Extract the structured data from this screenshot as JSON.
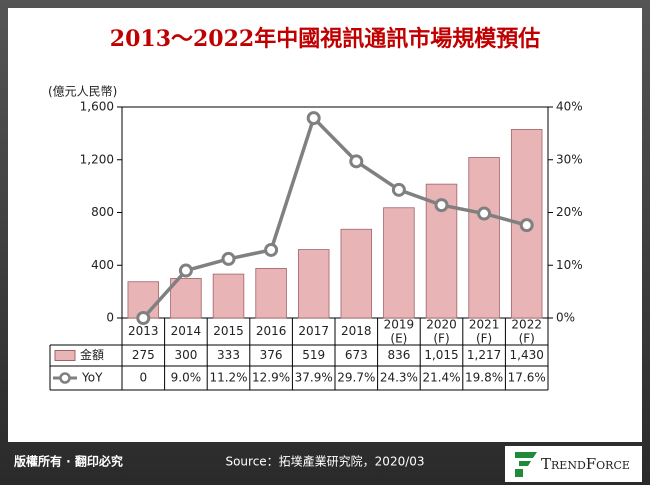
{
  "chart_data": {
    "type": "bar",
    "title": "2013～2022年中國視訊通訊市場規模預估",
    "y_label": "(億元人民幣)",
    "categories": [
      "2013",
      "2014",
      "2015",
      "2016",
      "2017",
      "2018",
      "2019\n(E)",
      "2020\n(F)",
      "2021\n(F)",
      "2022\n(F)"
    ],
    "series": [
      {
        "name": "金額",
        "type": "bar",
        "color": "#e8b4b6",
        "values": [
          275,
          300,
          333,
          376,
          519,
          673,
          836,
          1015,
          1217,
          1430
        ],
        "value_labels": [
          "275",
          "300",
          "333",
          "376",
          "519",
          "673",
          "836",
          "1,015",
          "1,217",
          "1,430"
        ]
      },
      {
        "name": "YoY",
        "type": "line",
        "axis": "y2",
        "color": "#808080",
        "values": [
          0,
          9.0,
          11.2,
          12.9,
          37.9,
          29.7,
          24.3,
          21.4,
          19.8,
          17.6
        ],
        "value_labels": [
          "0",
          "9.0%",
          "11.2%",
          "12.9%",
          "37.9%",
          "29.7%",
          "24.3%",
          "21.4%",
          "19.8%",
          "17.6%"
        ]
      }
    ],
    "ylim": [
      0,
      1600
    ],
    "yticks": [
      0,
      400,
      800,
      {
        "value": 1200,
        "label": "1,200"
      },
      {
        "value": 1600,
        "label": "1,600"
      }
    ],
    "y2lim": [
      0,
      40
    ],
    "y2ticks": [
      {
        "value": 0,
        "label": "0%"
      },
      {
        "value": 10,
        "label": "10%"
      },
      {
        "value": 20,
        "label": "20%"
      },
      {
        "value": 30,
        "label": "30%"
      },
      {
        "value": 40,
        "label": "40%"
      }
    ],
    "grid": false
  },
  "footer": {
    "rights": "版權所有 · 翻印必究",
    "source": "Source：拓墣產業研究院，2020/03",
    "brand": "TrendForce"
  }
}
